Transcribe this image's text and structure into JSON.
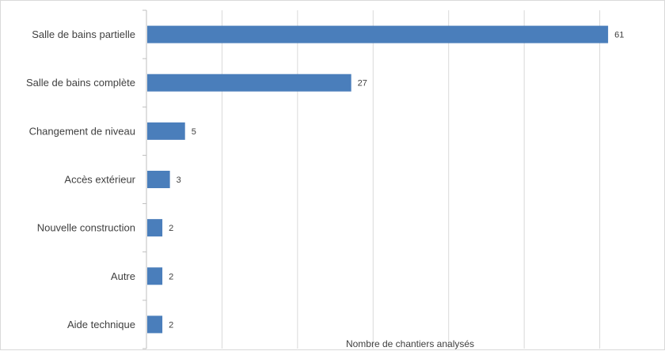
{
  "chart_data": {
    "type": "bar",
    "orientation": "horizontal",
    "categories": [
      "Salle de bains partielle",
      "Salle de bains complète",
      "Changement de niveau",
      "Accès extérieur",
      "Nouvelle construction",
      "Autre",
      "Aide technique"
    ],
    "values": [
      61,
      27,
      5,
      3,
      2,
      2,
      2
    ],
    "title": "",
    "xlabel": "Nombre de chantiers analysés",
    "ylabel": "",
    "xlim": [
      0,
      70
    ],
    "grid": "vertical",
    "bar_color": "#4a7ebb",
    "data_labels": true
  }
}
